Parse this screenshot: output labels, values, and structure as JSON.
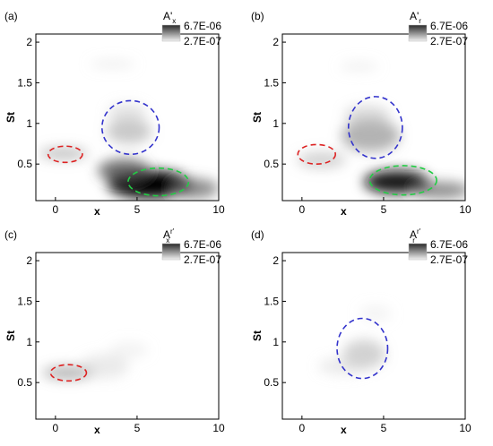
{
  "chart_data": [
    {
      "type": "heatmap",
      "panel_label": "(a)",
      "xlabel": "x",
      "ylabel": "St",
      "xlim": [
        -1.2,
        10
      ],
      "ylim": [
        0.05,
        2.1
      ],
      "x_ticks": [
        0,
        5,
        10
      ],
      "y_ticks": [
        0.5,
        1,
        1.5,
        2
      ],
      "legend": {
        "title_main": "A'",
        "title_sub": "x",
        "max": "6.7E-06",
        "min": "2.7E-07"
      },
      "blobs": [
        {
          "x": 5.8,
          "y": 0.25,
          "rx": 2.6,
          "ry": 0.17,
          "value": 1.0
        },
        {
          "x": 4.2,
          "y": 0.42,
          "rx": 1.6,
          "ry": 0.14,
          "value": 0.7
        },
        {
          "x": 8.5,
          "y": 0.2,
          "rx": 1.5,
          "ry": 0.12,
          "value": 0.6
        },
        {
          "x": 4.5,
          "y": 0.9,
          "rx": 1.4,
          "ry": 0.15,
          "value": 0.35
        },
        {
          "x": 4.4,
          "y": 1.12,
          "rx": 1.2,
          "ry": 0.12,
          "value": 0.2
        },
        {
          "x": 0.5,
          "y": 0.63,
          "rx": 1.5,
          "ry": 0.07,
          "value": 0.4
        },
        {
          "x": 3.5,
          "y": 1.73,
          "rx": 1.4,
          "ry": 0.05,
          "value": 0.12
        }
      ],
      "annotations": [
        {
          "color": "#dd2222",
          "cx": 0.6,
          "cy": 0.62,
          "rx": 2.1,
          "ry": 0.1
        },
        {
          "color": "#3333cc",
          "cx": 4.6,
          "cy": 0.95,
          "rx": 3.5,
          "ry": 0.33
        },
        {
          "color": "#22cc44",
          "cx": 6.3,
          "cy": 0.28,
          "rx": 3.7,
          "ry": 0.17
        }
      ]
    },
    {
      "type": "heatmap",
      "panel_label": "(b)",
      "xlabel": "x",
      "ylabel": "St",
      "xlim": [
        -1.2,
        10
      ],
      "ylim": [
        0.05,
        2.1
      ],
      "x_ticks": [
        0,
        5,
        10
      ],
      "y_ticks": [
        0.5,
        1,
        1.5,
        2
      ],
      "legend": {
        "title_main": "A'",
        "title_sub": "r",
        "max": "6.7E-06",
        "min": "2.7E-07"
      },
      "blobs": [
        {
          "x": 5.8,
          "y": 0.28,
          "rx": 2.0,
          "ry": 0.14,
          "value": 0.95
        },
        {
          "x": 8.5,
          "y": 0.18,
          "rx": 1.8,
          "ry": 0.1,
          "value": 0.6
        },
        {
          "x": 4.2,
          "y": 0.85,
          "rx": 1.8,
          "ry": 0.2,
          "value": 0.45
        },
        {
          "x": 4.0,
          "y": 1.1,
          "rx": 1.4,
          "ry": 0.12,
          "value": 0.25
        },
        {
          "x": 1.2,
          "y": 0.55,
          "rx": 1.5,
          "ry": 0.1,
          "value": 0.3
        },
        {
          "x": 3.5,
          "y": 1.7,
          "rx": 1.2,
          "ry": 0.06,
          "value": 0.1
        }
      ],
      "annotations": [
        {
          "color": "#dd2222",
          "cx": 0.9,
          "cy": 0.62,
          "rx": 2.3,
          "ry": 0.12
        },
        {
          "color": "#3333cc",
          "cx": 4.5,
          "cy": 0.95,
          "rx": 3.3,
          "ry": 0.38
        },
        {
          "color": "#22cc44",
          "cx": 6.2,
          "cy": 0.3,
          "rx": 4.1,
          "ry": 0.18
        }
      ]
    },
    {
      "type": "heatmap",
      "panel_label": "(c)",
      "xlabel": "x",
      "ylabel": "St",
      "xlim": [
        -1.2,
        10
      ],
      "ylim": [
        0.05,
        2.1
      ],
      "x_ticks": [
        0,
        5,
        10
      ],
      "y_ticks": [
        0.5,
        1,
        1.5,
        2
      ],
      "legend": {
        "title_main": "A",
        "title_sub": "x",
        "title_sup": "r'",
        "max": "6.7E-06",
        "min": "2.7E-07"
      },
      "blobs": [
        {
          "x": 0.8,
          "y": 0.62,
          "rx": 1.6,
          "ry": 0.08,
          "value": 0.45
        },
        {
          "x": 3.0,
          "y": 0.7,
          "rx": 1.5,
          "ry": 0.15,
          "value": 0.15
        },
        {
          "x": 4.5,
          "y": 0.9,
          "rx": 1.2,
          "ry": 0.1,
          "value": 0.08
        }
      ],
      "annotations": [
        {
          "color": "#dd2222",
          "cx": 0.8,
          "cy": 0.62,
          "rx": 2.2,
          "ry": 0.1
        }
      ]
    },
    {
      "type": "heatmap",
      "panel_label": "(d)",
      "xlabel": "x",
      "ylabel": "St",
      "xlim": [
        -1.2,
        10
      ],
      "ylim": [
        0.05,
        2.1
      ],
      "x_ticks": [
        0,
        5,
        10
      ],
      "y_ticks": [
        0.5,
        1,
        1.5,
        2
      ],
      "legend": {
        "title_main": "A",
        "title_sub": "r",
        "title_sup": "r'",
        "max": "6.7E-06",
        "min": "2.7E-07"
      },
      "blobs": [
        {
          "x": 3.8,
          "y": 0.85,
          "rx": 1.3,
          "ry": 0.18,
          "value": 0.3
        },
        {
          "x": 2.5,
          "y": 0.7,
          "rx": 1.5,
          "ry": 0.1,
          "value": 0.15
        },
        {
          "x": 4.5,
          "y": 1.35,
          "rx": 1.0,
          "ry": 0.1,
          "value": 0.07
        }
      ],
      "annotations": [
        {
          "color": "#3333cc",
          "cx": 3.7,
          "cy": 0.92,
          "rx": 3.1,
          "ry": 0.37
        }
      ]
    }
  ]
}
